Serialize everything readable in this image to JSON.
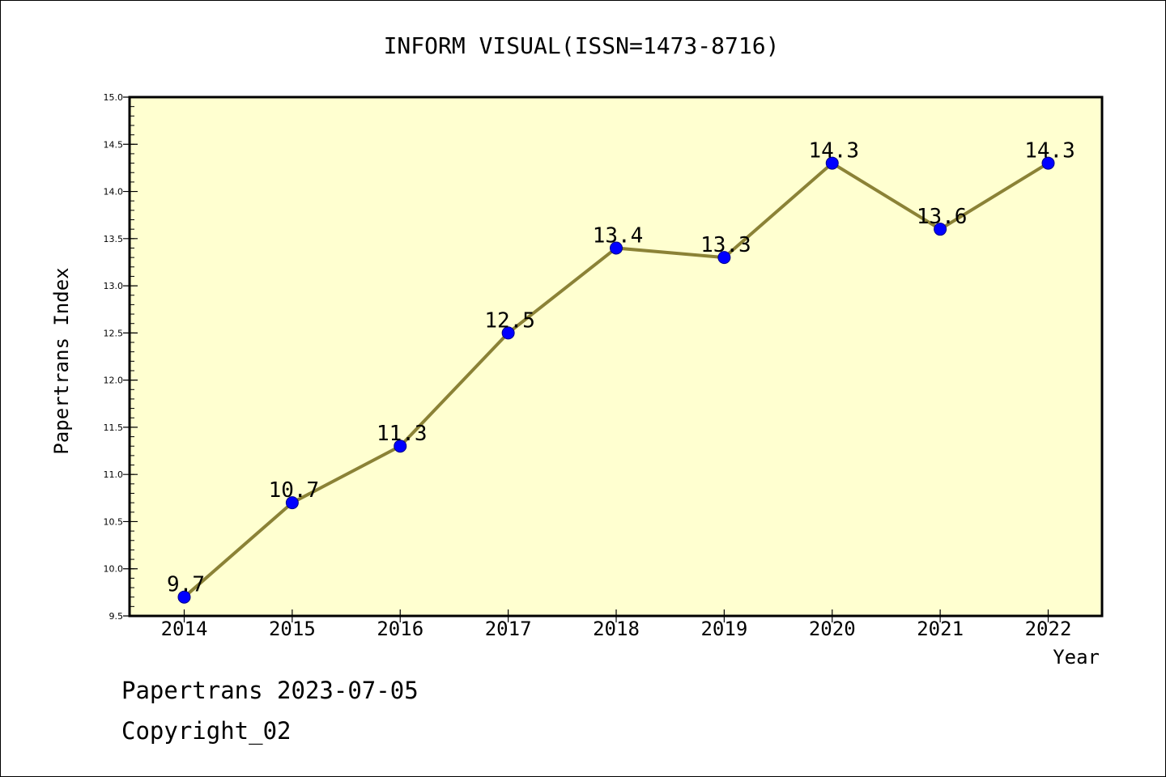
{
  "chart_data": {
    "type": "line",
    "title": "INFORM VISUAL(ISSN=1473-8716)",
    "xlabel": "Year",
    "ylabel": "Papertrans Index",
    "categories": [
      "2014",
      "2015",
      "2016",
      "2017",
      "2018",
      "2019",
      "2020",
      "2021",
      "2022"
    ],
    "values": [
      9.7,
      10.7,
      11.3,
      12.5,
      13.4,
      13.3,
      14.3,
      13.6,
      14.3
    ],
    "data_labels": [
      "9.7",
      "10.7",
      "11.3",
      "12.5",
      "13.4",
      "13.3",
      "14.3",
      "13.6",
      "14.3"
    ],
    "ylim": [
      9.5,
      15.0
    ],
    "y_ticks": [
      "9.5",
      "10.0",
      "10.5",
      "11.0",
      "11.5",
      "12.0",
      "12.5",
      "13.0",
      "13.5",
      "14.0",
      "14.5",
      "15.0"
    ],
    "grid": false,
    "legend": "none",
    "colors": {
      "plot_background": "#ffffd0",
      "line": "#8b8236",
      "marker": "#0000ff",
      "marker_edge": "#00008b"
    }
  },
  "footer": {
    "line1": "Papertrans 2023-07-05",
    "line2": "Copyright_02"
  }
}
